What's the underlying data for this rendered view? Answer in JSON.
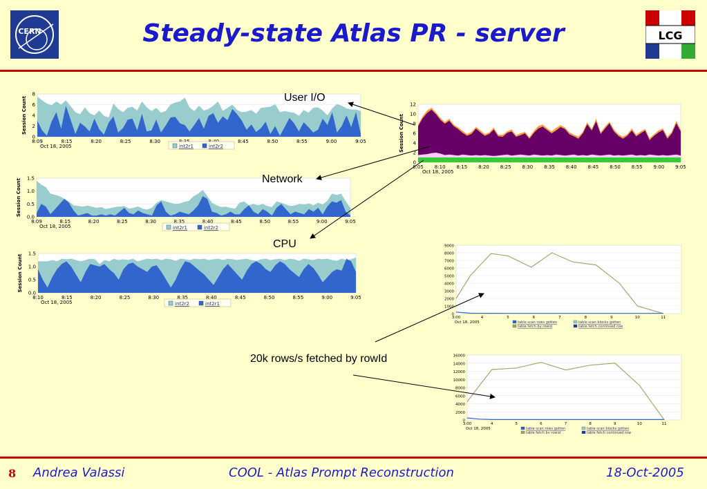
{
  "slide": {
    "title": "Steady-state Atlas PR - server",
    "page_number": "8",
    "author": "Andrea Valassi",
    "talk": "COOL - Atlas Prompt Reconstruction",
    "date": "18-Oct-2005",
    "cern_logo_text": "CERN",
    "lcg_logo_text": "LCG"
  },
  "labels": {
    "user_io": "User I/O",
    "network": "Network",
    "cpu": "CPU",
    "rows": "20k rows/s fetched by rowId"
  },
  "colors": {
    "background": "#ffffcc",
    "title": "#1a1acc",
    "rule": "#cc0000",
    "series_teal": "#99cccc",
    "series_blue": "#3366cc",
    "purple": "#660066",
    "orange": "#ff9933",
    "pink": "#ffccff",
    "green": "#33cc33",
    "olive": "#a6a66b"
  },
  "chart_data": [
    {
      "type": "area",
      "id": "user_io",
      "ylabel": "Session Count",
      "ylim": [
        0,
        8
      ],
      "yticks": [
        "0",
        "2",
        "4",
        "6",
        "8"
      ],
      "xticks": [
        "8:09",
        "8:15",
        "8:20",
        "8:25",
        "8:30",
        "8:35",
        "8:40",
        "8:45",
        "8:50",
        "8:55",
        "9:00",
        "9:05"
      ],
      "date_label": "Oct 18, 2005",
      "series": [
        {
          "name": "int2r1",
          "values": [
            7.5,
            6.8,
            6.2,
            5.9,
            6.6,
            6.0,
            6.8,
            5.7,
            4.6,
            4.2,
            5.5,
            4.4,
            4.0,
            4.9,
            3.9,
            3.6,
            6.2,
            5.2,
            4.6,
            5.4,
            5.6,
            4.9,
            6.6,
            5.5,
            4.8,
            5.4,
            4.5,
            4.8,
            6.0,
            6.4,
            6.6,
            7.3,
            5.5,
            4.8,
            5.8,
            4.9,
            5.2,
            5.8,
            6.6,
            4.8,
            5.4,
            6.0,
            5.0,
            4.6,
            4.7,
            5.0,
            4.3,
            5.4,
            5.5,
            5.6,
            6.1,
            4.6,
            4.8,
            4.6,
            4.5,
            3.9,
            5.0,
            4.5,
            5.4,
            5.5,
            4.9,
            4.0,
            5.3,
            6.1,
            5.8,
            5.3,
            5.1,
            5.1,
            4.8
          ]
        },
        {
          "name": "int2r2",
          "values": [
            3,
            1.2,
            0.2,
            2.8,
            4.6,
            1.5,
            5.8,
            3.2,
            0.5,
            2.6,
            1.9,
            1.0,
            3.4,
            1.4,
            0.4,
            2.6,
            3.8,
            0.8,
            1.6,
            3.2,
            3.4,
            1.2,
            4.3,
            1.0,
            1.2,
            3.2,
            0.8,
            2.1,
            3.6,
            3.7,
            2.5,
            2.2,
            1.0,
            2.2,
            3.5,
            1.5,
            3.9,
            4.4,
            2.6,
            3.8,
            3.1,
            5.2,
            4.2,
            3.0,
            1.3,
            2.3,
            0.9,
            1.6,
            2.8,
            0.5,
            2.0,
            0.2,
            1.8,
            3.5,
            2.5,
            1.0,
            2.7,
            1.8,
            0.8,
            1.3,
            3.4,
            2.2,
            4.6,
            0.8,
            2.0,
            4.0,
            1.8,
            4.6,
            0.5
          ]
        }
      ]
    },
    {
      "type": "area",
      "id": "network",
      "ylabel": "Session Count",
      "ylim": [
        0,
        1.5
      ],
      "yticks": [
        "0.0",
        "0.5",
        "1.0",
        "1.5"
      ],
      "xticks": [
        "8:09",
        "8:15",
        "8:20",
        "8:25",
        "8:30",
        "8:35",
        "8:40",
        "8:45",
        "8:50",
        "8:55",
        "9:00",
        "9:05"
      ],
      "date_label": "Oct 18, 2005",
      "series": [
        {
          "name": "int2r1",
          "values": [
            1.4,
            1.25,
            1.15,
            0.9,
            0.85,
            0.8,
            0.7,
            0.6,
            0.45,
            0.42,
            0.4,
            0.44,
            0.4,
            0.35,
            0.38,
            0.3,
            0.34,
            0.38,
            0.4,
            0.42,
            0.32,
            0.35,
            0.4,
            0.32,
            0.28,
            0.36,
            0.55,
            0.65,
            0.6,
            0.55,
            0.5,
            0.52,
            0.58,
            0.62,
            0.8,
            0.9,
            1.05,
            0.8,
            0.55,
            0.45,
            0.38,
            0.4,
            0.35,
            0.32,
            0.55,
            0.6,
            0.45,
            0.5,
            0.45,
            0.5,
            0.42,
            0.38,
            0.6,
            0.55,
            0.48,
            0.42,
            0.45,
            0.5,
            0.48,
            0.52,
            0.45,
            0.55,
            0.48,
            0.62,
            0.9,
            0.85,
            0.9,
            0.6,
            0.35
          ]
        },
        {
          "name": "int2r2",
          "values": [
            0.15,
            0.5,
            0.4,
            0.1,
            0.3,
            0.5,
            0.7,
            0.55,
            0.25,
            0.05,
            0.1,
            0.15,
            0.05,
            0.05,
            0.1,
            0.05,
            0.1,
            0.05,
            0.2,
            0.35,
            0.15,
            0.1,
            0.25,
            0.15,
            0.1,
            0.05,
            0.45,
            0.6,
            0.2,
            0.05,
            0.1,
            0.2,
            0.15,
            0.1,
            0.25,
            0.45,
            0.8,
            0.7,
            0.2,
            0.15,
            0.05,
            0.1,
            0.2,
            0.1,
            0.1,
            0.3,
            0.45,
            0.2,
            0.1,
            0.3,
            0.2,
            0.05,
            0.35,
            0.5,
            0.3,
            0.1,
            0.2,
            0.15,
            0.1,
            0.3,
            0.2,
            0.35,
            0.1,
            0.4,
            0.6,
            0.55,
            0.65,
            0.2,
            0.05
          ]
        }
      ]
    },
    {
      "type": "area",
      "id": "cpu",
      "ylabel": "Session Count",
      "ylim": [
        0,
        1.5
      ],
      "yticks": [
        "0.0",
        "0.5",
        "1.0",
        "1.5"
      ],
      "xticks": [
        "8:10",
        "8:15",
        "8:20",
        "8:25",
        "8:30",
        "8:35",
        "8:40",
        "8:45",
        "8:50",
        "8:55",
        "9:00",
        "9:05"
      ],
      "date_label": "Oct 18, 2005",
      "series": [
        {
          "name": "int2r2",
          "values": [
            1.2,
            1.2,
            1.2,
            1.25,
            1.2,
            1.3,
            1.28,
            1.3,
            1.25,
            1.2,
            1.25,
            1.3,
            1.28,
            1.1,
            1.25,
            1.2,
            1.3,
            1.25,
            1.28,
            1.25,
            1.3,
            1.2,
            1.25,
            1.3,
            1.28,
            1.3,
            1.25,
            1.3,
            1.28,
            1.22,
            1.3,
            1.28,
            1.25,
            1.3,
            1.28,
            1.3,
            1.25,
            1.28,
            1.3,
            1.25,
            1.3,
            1.28,
            1.25,
            1.28,
            1.3,
            1.25,
            1.22,
            1.28,
            1.3,
            1.25,
            1.28,
            1.3,
            1.25,
            1.3,
            1.28,
            1.22,
            1.3,
            1.28,
            1.25,
            1.3,
            1.28,
            1.3,
            1.25,
            1.22,
            1.3,
            1.25,
            1.28,
            1.35
          ]
        },
        {
          "name": "int2r1",
          "values": [
            0.9,
            0.5,
            0.2,
            0.6,
            0.9,
            1.1,
            1.2,
            1.0,
            0.7,
            0.4,
            0.8,
            1.1,
            1.05,
            1.0,
            1.1,
            0.9,
            0.75,
            0.5,
            0.9,
            1.1,
            1.15,
            1.0,
            0.9,
            0.8,
            1.0,
            1.05,
            0.8,
            0.5,
            0.2,
            0.5,
            0.9,
            1.2,
            1.15,
            1.0,
            0.85,
            0.7,
            0.5,
            0.3,
            0.6,
            0.9,
            1.1,
            0.9,
            0.7,
            0.5,
            0.85,
            1.1,
            1.2,
            1.1,
            0.9,
            0.8,
            1.05,
            1.2,
            1.1,
            0.9,
            0.75,
            0.6,
            0.9,
            1.1,
            0.95,
            0.7,
            0.4,
            0.6,
            0.8,
            0.9,
            0.85,
            1.3,
            1.2,
            0.8
          ]
        }
      ]
    },
    {
      "type": "area",
      "id": "stacked_waits",
      "ylabel": "Session Count",
      "ylim": [
        0,
        12
      ],
      "yticks": [
        "0",
        "2",
        "4",
        "6",
        "8",
        "10",
        "12"
      ],
      "xticks": [
        "8:05",
        "8:10",
        "8:15",
        "8:20",
        "8:25",
        "8:30",
        "8:35",
        "8:40",
        "8:45",
        "8:50",
        "8:55",
        "9:00",
        "9:05"
      ],
      "date_label": "Oct 18, 2005",
      "series": [
        {
          "name": "",
          "values": [
            1.0,
            1.0,
            1.0,
            1.0,
            1.0,
            1.0,
            1.0,
            1.0,
            1.0,
            1.0,
            1.0,
            1.0,
            1.0,
            1.0,
            1.0,
            1.0,
            1.0,
            1.0,
            1.0,
            1.0,
            1.0,
            1.0,
            1.0,
            1.0,
            1.0,
            1.0,
            1.0,
            1.0,
            1.0,
            1.0,
            1.0,
            1.0,
            1.0,
            1.0,
            1.0,
            1.0,
            1.0,
            1.0,
            1.0,
            1.0,
            1.0,
            1.0,
            1.0,
            1.0,
            1.0,
            1.0,
            1.0,
            1.0,
            1.0,
            1.0,
            1.0,
            1.0,
            1.0,
            1.0,
            1.0,
            1.0,
            1.0,
            1.0,
            1.0,
            1.0
          ]
        },
        {
          "name": "",
          "values": [
            0.5,
            0.6,
            0.7,
            0.9,
            1.0,
            0.8,
            0.5,
            0.6,
            0.5,
            0.4,
            0.6,
            0.5,
            0.4,
            0.5,
            0.4,
            0.5,
            0.4,
            0.3,
            0.4,
            0.5,
            0.6,
            0.4,
            0.5,
            0.6,
            0.5,
            0.4,
            0.6,
            0.5,
            0.4,
            0.5,
            0.4,
            0.6,
            0.5,
            0.4,
            0.5,
            0.6,
            0.4,
            0.5,
            0.4,
            0.6,
            0.5,
            0.4,
            0.5,
            0.6,
            0.4,
            0.5,
            0.4,
            0.5,
            0.6,
            0.4,
            0.5,
            0.4,
            0.6,
            0.5,
            0.4,
            0.5,
            0.4,
            0.5,
            0.6,
            0.4
          ]
        },
        {
          "name": "",
          "values": [
            6.0,
            7.5,
            8.5,
            9.0,
            8.0,
            7.0,
            6.5,
            7.0,
            6.0,
            5.5,
            4.5,
            4.0,
            4.5,
            5.5,
            4.8,
            4.0,
            4.5,
            5.5,
            4.0,
            3.8,
            4.5,
            5.0,
            3.8,
            4.0,
            4.5,
            3.5,
            4.5,
            5.5,
            6.0,
            5.2,
            4.6,
            5.0,
            5.8,
            5.5,
            4.3,
            3.8,
            3.5,
            4.5,
            6.5,
            5.0,
            7.0,
            4.5,
            5.5,
            6.5,
            5.0,
            4.0,
            3.5,
            4.0,
            5.0,
            4.0,
            4.5,
            5.2,
            3.0,
            4.0,
            4.8,
            5.2,
            3.5,
            4.5,
            6.5,
            5.0
          ]
        },
        {
          "name": "",
          "values": [
            0.3,
            0.4,
            0.5,
            0.4,
            0.3,
            0.4,
            0.3,
            0.4,
            0.3,
            0.3,
            0.4,
            0.3,
            0.4,
            0.3,
            0.4,
            0.3,
            0.3,
            0.4,
            0.3,
            0.4,
            0.3,
            0.4,
            0.3,
            0.4,
            0.3,
            0.3,
            0.4,
            0.5,
            0.4,
            0.3,
            0.4,
            0.5,
            0.4,
            0.3,
            0.4,
            0.3,
            0.4,
            0.3,
            0.4,
            0.3,
            0.5,
            0.3,
            0.4,
            0.3,
            0.4,
            0.3,
            0.4,
            0.3,
            0.4,
            0.3,
            0.4,
            0.3,
            0.4,
            0.3,
            0.4,
            0.3,
            0.4,
            0.3,
            0.5,
            0.3
          ]
        }
      ]
    },
    {
      "type": "line",
      "id": "rows_fetched_1",
      "ylim": [
        0,
        9000
      ],
      "yticks": [
        "0",
        "1000",
        "2000",
        "3000",
        "4000",
        "5000",
        "6000",
        "7000",
        "8000",
        "9000"
      ],
      "xticks": [
        "3:00",
        "4",
        "5",
        "6",
        "7",
        "8",
        "9",
        "10",
        "11"
      ],
      "date_label": "Oct 18, 2005",
      "legend": [
        "table scan rows gotten",
        "table scan blocks gotten",
        "table fetch by rowid",
        "table fetch continued row"
      ],
      "x": [
        3.0,
        3.55,
        4.35,
        5.0,
        5.9,
        6.7,
        7.5,
        8.4,
        9.3,
        10.0,
        11.0
      ],
      "series": [
        {
          "name": "table fetch by rowid",
          "values": [
            2000,
            5000,
            7900,
            7600,
            6100,
            8000,
            6800,
            6400,
            4000,
            1000,
            0
          ]
        },
        {
          "name": "table scan rows gotten",
          "values": [
            200,
            50,
            40,
            30,
            30,
            30,
            30,
            30,
            30,
            30,
            30
          ]
        }
      ]
    },
    {
      "type": "line",
      "id": "rows_fetched_2",
      "ylim": [
        0,
        16000
      ],
      "yticks": [
        "0",
        "2000",
        "4000",
        "6000",
        "8000",
        "10000",
        "12000",
        "14000",
        "16000"
      ],
      "xticks": [
        "3:00",
        "4",
        "5",
        "6",
        "7",
        "8",
        "9",
        "10",
        "11"
      ],
      "date_label": "Oct 18, 2005",
      "legend": [
        "table scan rows gotten",
        "table scan blocks gotten",
        "table fetch by rowid",
        "table fetch continued row"
      ],
      "x": [
        3.0,
        3.5,
        4.0,
        5.0,
        6.0,
        7.0,
        8.0,
        9.0,
        10.0,
        11.0
      ],
      "series": [
        {
          "name": "table fetch by rowid",
          "values": [
            4500,
            8500,
            12400,
            12800,
            14200,
            12300,
            13500,
            14000,
            8500,
            0
          ]
        },
        {
          "name": "table scan rows gotten",
          "values": [
            500,
            200,
            100,
            100,
            100,
            100,
            100,
            100,
            100,
            100
          ]
        }
      ]
    }
  ]
}
